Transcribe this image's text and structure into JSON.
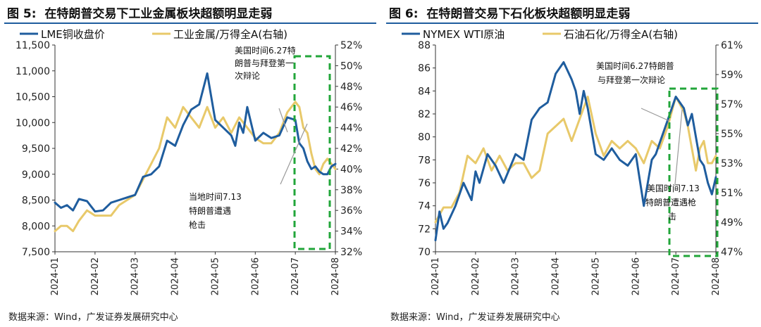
{
  "charts": [
    {
      "figure_label": "图 5:",
      "title": "在特朗普交易下工业金属板块超额明显走弱",
      "source": "数据来源：Wind，广发证券发展研究中心",
      "chart_data": {
        "type": "line",
        "title": "在特朗普交易下工业金属板块超额明显走弱",
        "x_tick_labels": [
          "2024-01",
          "2024-02",
          "2024-03",
          "2024-04",
          "2024-05",
          "2024-06",
          "2024-07",
          "2024-08"
        ],
        "y_left": {
          "ticks": [
            "7,500",
            "8,000",
            "8,500",
            "9,000",
            "9,500",
            "10,000",
            "10,500",
            "11,000",
            "11,500"
          ],
          "ylim": [
            7500,
            11500
          ]
        },
        "y_right": {
          "ticks": [
            "32%",
            "34%",
            "36%",
            "38%",
            "40%",
            "42%",
            "44%",
            "46%",
            "48%",
            "50%",
            "52%"
          ],
          "ylim": [
            32,
            52
          ]
        },
        "series": [
          {
            "name": "LME铜收盘价",
            "axis": "left",
            "color": "#1f5d9e",
            "x": [
              0,
              0.15,
              0.3,
              0.45,
              0.6,
              0.8,
              1.0,
              1.2,
              1.4,
              1.6,
              1.8,
              2.0,
              2.2,
              2.4,
              2.6,
              2.8,
              3.0,
              3.2,
              3.4,
              3.6,
              3.8,
              4.0,
              4.2,
              4.4,
              4.5,
              4.6,
              4.7,
              4.8,
              5.0,
              5.2,
              5.4,
              5.6,
              5.8,
              6.0,
              6.1,
              6.2,
              6.3,
              6.4,
              6.5,
              6.6,
              6.7,
              6.8,
              6.9,
              7.0
            ],
            "values": [
              8450,
              8350,
              8400,
              8300,
              8520,
              8480,
              8280,
              8300,
              8450,
              8500,
              8550,
              8600,
              8950,
              9000,
              9150,
              9650,
              9550,
              9950,
              10250,
              10350,
              10950,
              10050,
              9900,
              9750,
              9550,
              10000,
              9800,
              10300,
              9650,
              9800,
              9700,
              9750,
              10100,
              10050,
              9600,
              9500,
              9250,
              9100,
              9150,
              9050,
              9000,
              9000,
              9150,
              9200
            ]
          },
          {
            "name": "工业金属/万得全A(右轴)",
            "axis": "right",
            "color": "#e8c96a",
            "x": [
              0,
              0.15,
              0.3,
              0.45,
              0.6,
              0.8,
              1.0,
              1.2,
              1.4,
              1.6,
              1.8,
              2.0,
              2.2,
              2.4,
              2.6,
              2.8,
              3.0,
              3.2,
              3.4,
              3.6,
              3.8,
              4.0,
              4.2,
              4.4,
              4.6,
              4.8,
              5.0,
              5.2,
              5.4,
              5.6,
              5.8,
              6.0,
              6.1,
              6.2,
              6.3,
              6.4,
              6.5,
              6.6,
              6.7,
              6.8,
              6.9,
              7.0
            ],
            "values": [
              34.0,
              34.5,
              34.5,
              34.0,
              35.0,
              36.0,
              35.5,
              35.5,
              35.5,
              36.5,
              37.0,
              37.5,
              39.0,
              40.5,
              42.0,
              45.0,
              44.0,
              46.0,
              45.0,
              44.0,
              46.0,
              44.0,
              45.0,
              43.5,
              45.0,
              44.0,
              43.0,
              42.5,
              42.5,
              43.5,
              45.5,
              46.5,
              46.0,
              44.0,
              43.5,
              41.5,
              40.0,
              39.5,
              40.5,
              41.0,
              40.5,
              40.0
            ]
          }
        ],
        "annotations": [
          "美国时间6.27特朗普与拜登第一次辩论",
          "当地时间7.13特朗普遭遇枪击"
        ]
      }
    },
    {
      "figure_label": "图 6:",
      "title": "在特朗普交易下石化板块超额明显走弱",
      "source": "数据来源：Wind，广发证券发展研究中心",
      "chart_data": {
        "type": "line",
        "title": "在特朗普交易下石化板块超额明显走弱",
        "x_tick_labels": [
          "2024-01",
          "2024-02",
          "2024-03",
          "2024-04",
          "2024-05",
          "2024-06",
          "2024-07",
          "2024-08"
        ],
        "y_left": {
          "ticks": [
            "70",
            "72",
            "74",
            "76",
            "78",
            "80",
            "82",
            "84",
            "86",
            "88"
          ],
          "ylim": [
            70,
            88
          ]
        },
        "y_right": {
          "ticks": [
            "47%",
            "49%",
            "51%",
            "53%",
            "55%",
            "57%",
            "59%",
            "61%"
          ],
          "ylim": [
            47,
            61
          ]
        },
        "series": [
          {
            "name": "NYMEX WTI原油",
            "axis": "left",
            "color": "#1f5d9e",
            "x": [
              0,
              0.1,
              0.2,
              0.3,
              0.5,
              0.7,
              0.9,
              1.0,
              1.1,
              1.3,
              1.5,
              1.7,
              2.0,
              2.2,
              2.4,
              2.6,
              2.8,
              3.0,
              3.2,
              3.4,
              3.5,
              3.6,
              3.7,
              3.8,
              4.0,
              4.2,
              4.4,
              4.6,
              4.8,
              5.0,
              5.2,
              5.4,
              5.5,
              5.6,
              5.8,
              6.0,
              6.2,
              6.3,
              6.4,
              6.5,
              6.6,
              6.7,
              6.8,
              6.9,
              7.0
            ],
            "values": [
              71.0,
              73.5,
              72.0,
              72.5,
              74.0,
              76.0,
              74.5,
              77.0,
              76.0,
              78.5,
              77.5,
              76.0,
              78.5,
              78.0,
              81.5,
              82.5,
              83.0,
              85.5,
              86.5,
              85.0,
              84.0,
              82.0,
              84.0,
              82.5,
              78.5,
              78.0,
              79.0,
              78.0,
              77.5,
              78.5,
              74.0,
              78.0,
              78.5,
              79.5,
              81.5,
              83.5,
              82.5,
              81.0,
              82.0,
              80.0,
              78.0,
              77.5,
              76.0,
              75.0,
              76.5
            ]
          },
          {
            "name": "石油石化/万得全A(右轴)",
            "axis": "right",
            "color": "#e8c96a",
            "x": [
              0,
              0.2,
              0.4,
              0.6,
              0.8,
              1.0,
              1.2,
              1.4,
              1.6,
              1.8,
              2.0,
              2.2,
              2.4,
              2.6,
              2.8,
              3.0,
              3.2,
              3.4,
              3.6,
              3.8,
              4.0,
              4.2,
              4.4,
              4.6,
              4.8,
              5.0,
              5.2,
              5.4,
              5.6,
              5.8,
              6.0,
              6.2,
              6.3,
              6.4,
              6.5,
              6.6,
              6.7,
              6.8,
              6.9,
              7.0
            ],
            "values": [
              49.0,
              50.0,
              50.0,
              51.0,
              53.5,
              53.0,
              54.0,
              52.5,
              53.5,
              52.5,
              53.0,
              53.0,
              52.0,
              52.5,
              55.0,
              55.5,
              56.0,
              54.5,
              56.0,
              57.5,
              55.0,
              53.5,
              54.5,
              54.0,
              54.5,
              54.0,
              53.0,
              54.5,
              54.0,
              55.5,
              57.5,
              56.5,
              55.5,
              54.0,
              52.5,
              54.0,
              54.5,
              53.0,
              53.0,
              53.5
            ]
          }
        ],
        "annotations": [
          "美国时间6.27特朗普与拜登第一次辩论",
          "美国时间7.13特朗普遭遇枪击"
        ]
      }
    }
  ]
}
